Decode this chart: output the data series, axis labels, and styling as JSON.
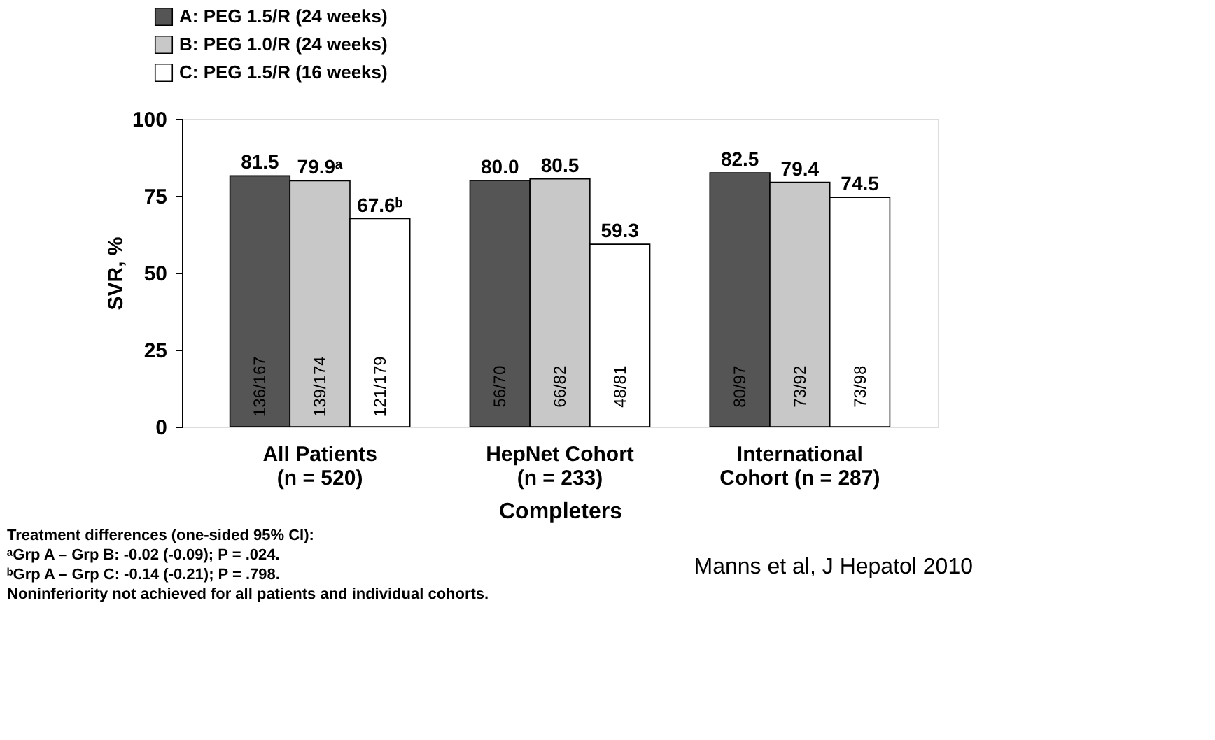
{
  "chart_data": {
    "type": "bar",
    "xlabel": "Completers",
    "ylabel": "SVR, %",
    "categories": [
      "All Patients\n(n = 520)",
      "HepNet Cohort\n(n = 233)",
      "International\nCohort (n = 287)"
    ],
    "series": [
      {
        "name": "A: PEG 1.5/R (24 weeks)",
        "color": "#555555",
        "values": [
          81.5,
          80.0,
          82.5
        ],
        "value_labels": [
          "81.5",
          "80.0",
          "82.5"
        ]
      },
      {
        "name": "B: PEG 1.0/R (24 weeks)",
        "color": "#c8c8c8",
        "values": [
          79.9,
          80.5,
          79.4
        ],
        "value_labels": [
          "79.9ᵃ",
          "80.5",
          "79.4"
        ]
      },
      {
        "name": "C: PEG 1.5/R (16 weeks)",
        "color": "#ffffff",
        "values": [
          67.6,
          59.3,
          74.5
        ],
        "value_labels": [
          "67.6ᵇ",
          "59.3",
          "74.5"
        ]
      }
    ],
    "ylim": [
      0,
      100
    ],
    "yticks": [
      0,
      25,
      50,
      75,
      100
    ],
    "grid": false,
    "legend": "top left",
    "annotations": [
      "136/167",
      "139/174",
      "121/179",
      "56/70",
      "66/82",
      "48/81",
      "80/97",
      "73/92",
      "73/98",
      "Treatment differences (one-sided 95% CI):",
      "ᵃGrp A – Grp B: -0.02 (-0.09); P = .024.",
      "ᵇGrp A – Grp C: -0.14 (-0.21); P = .798.",
      " Noninferiority not achieved for all patients and individual cohorts.",
      "Manns et al, J Hepatol 2010"
    ]
  }
}
